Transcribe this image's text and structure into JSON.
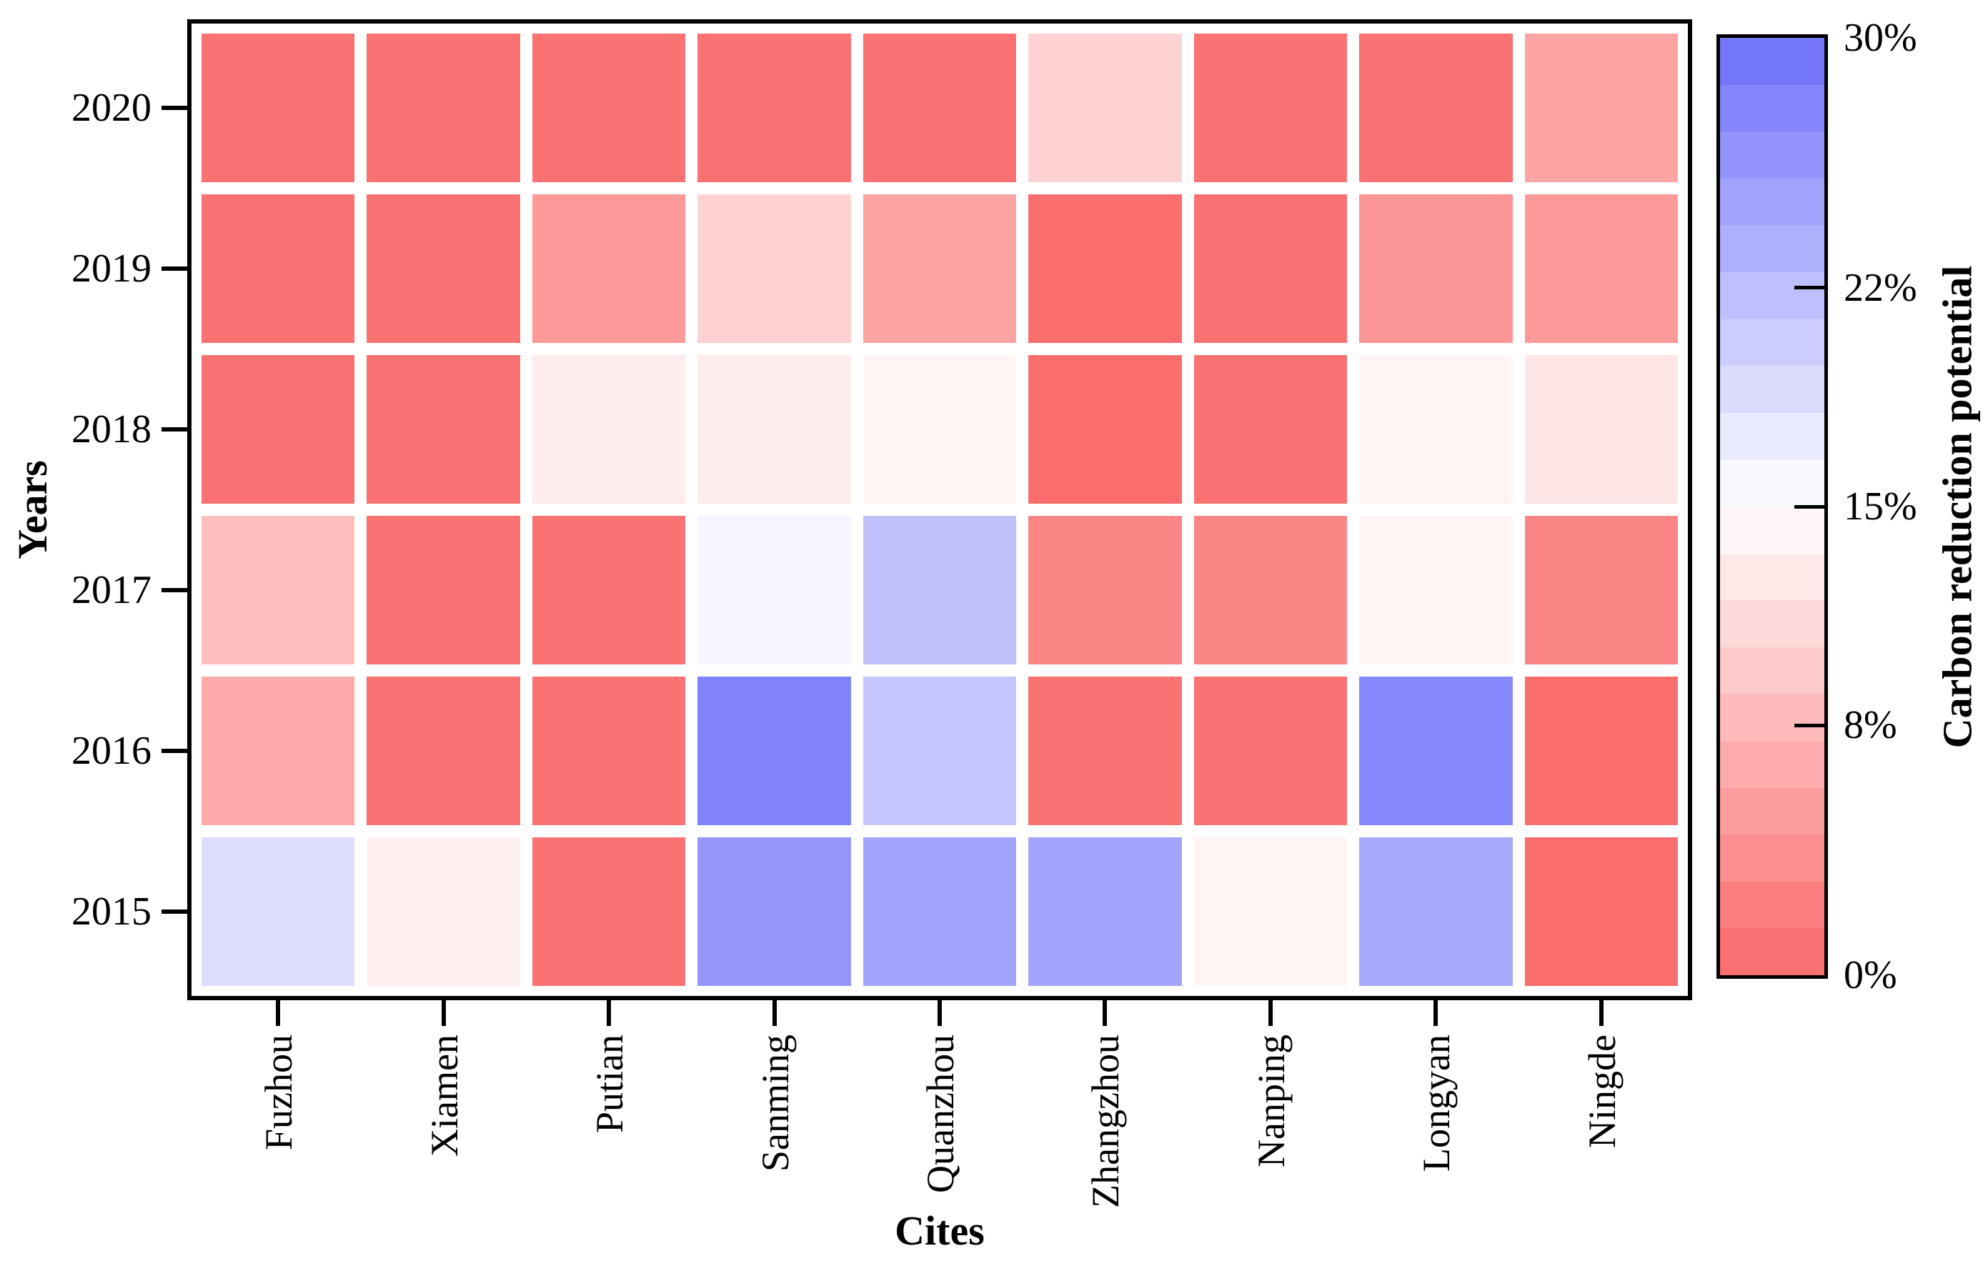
{
  "chart_data": {
    "type": "heatmap",
    "xlabel": "Cites",
    "ylabel": "Years",
    "rows": [
      "2020",
      "2019",
      "2018",
      "2017",
      "2016",
      "2015"
    ],
    "columns": [
      "Fuzhou",
      "Xiamen",
      "Putian",
      "Sanming",
      "Quanzhou",
      "Zhangzhou",
      "Nanping",
      "Longyan",
      "Ningde"
    ],
    "values_percent": [
      [
        1,
        1,
        1,
        1,
        1,
        10.5,
        1,
        1,
        6
      ],
      [
        1,
        1,
        5,
        10.5,
        6,
        0.5,
        1,
        4.5,
        5
      ],
      [
        1,
        1,
        13,
        13,
        14,
        0.5,
        1,
        14,
        12.5
      ],
      [
        8.5,
        1,
        1,
        16,
        21.5,
        3,
        3,
        14,
        3
      ],
      [
        6.5,
        1,
        1,
        28,
        21,
        1,
        1,
        27.5,
        0.5
      ],
      [
        18.5,
        13.5,
        1,
        26,
        24.5,
        24.5,
        14,
        24,
        0.5
      ]
    ],
    "value_unit": "%",
    "value_range": [
      0,
      30
    ],
    "grid_gap_color": "#ffffff",
    "colorbar": {
      "title": "Carbon reduction potential",
      "tick_values": [
        30,
        22,
        15,
        8,
        0
      ],
      "tick_labels": [
        "30%",
        "22%",
        "15%",
        "8%",
        "0%"
      ],
      "segments": 20,
      "color_low": "#fa6868",
      "color_mid": "#ffffff",
      "color_high": "#6e70fb",
      "position": "right"
    }
  }
}
